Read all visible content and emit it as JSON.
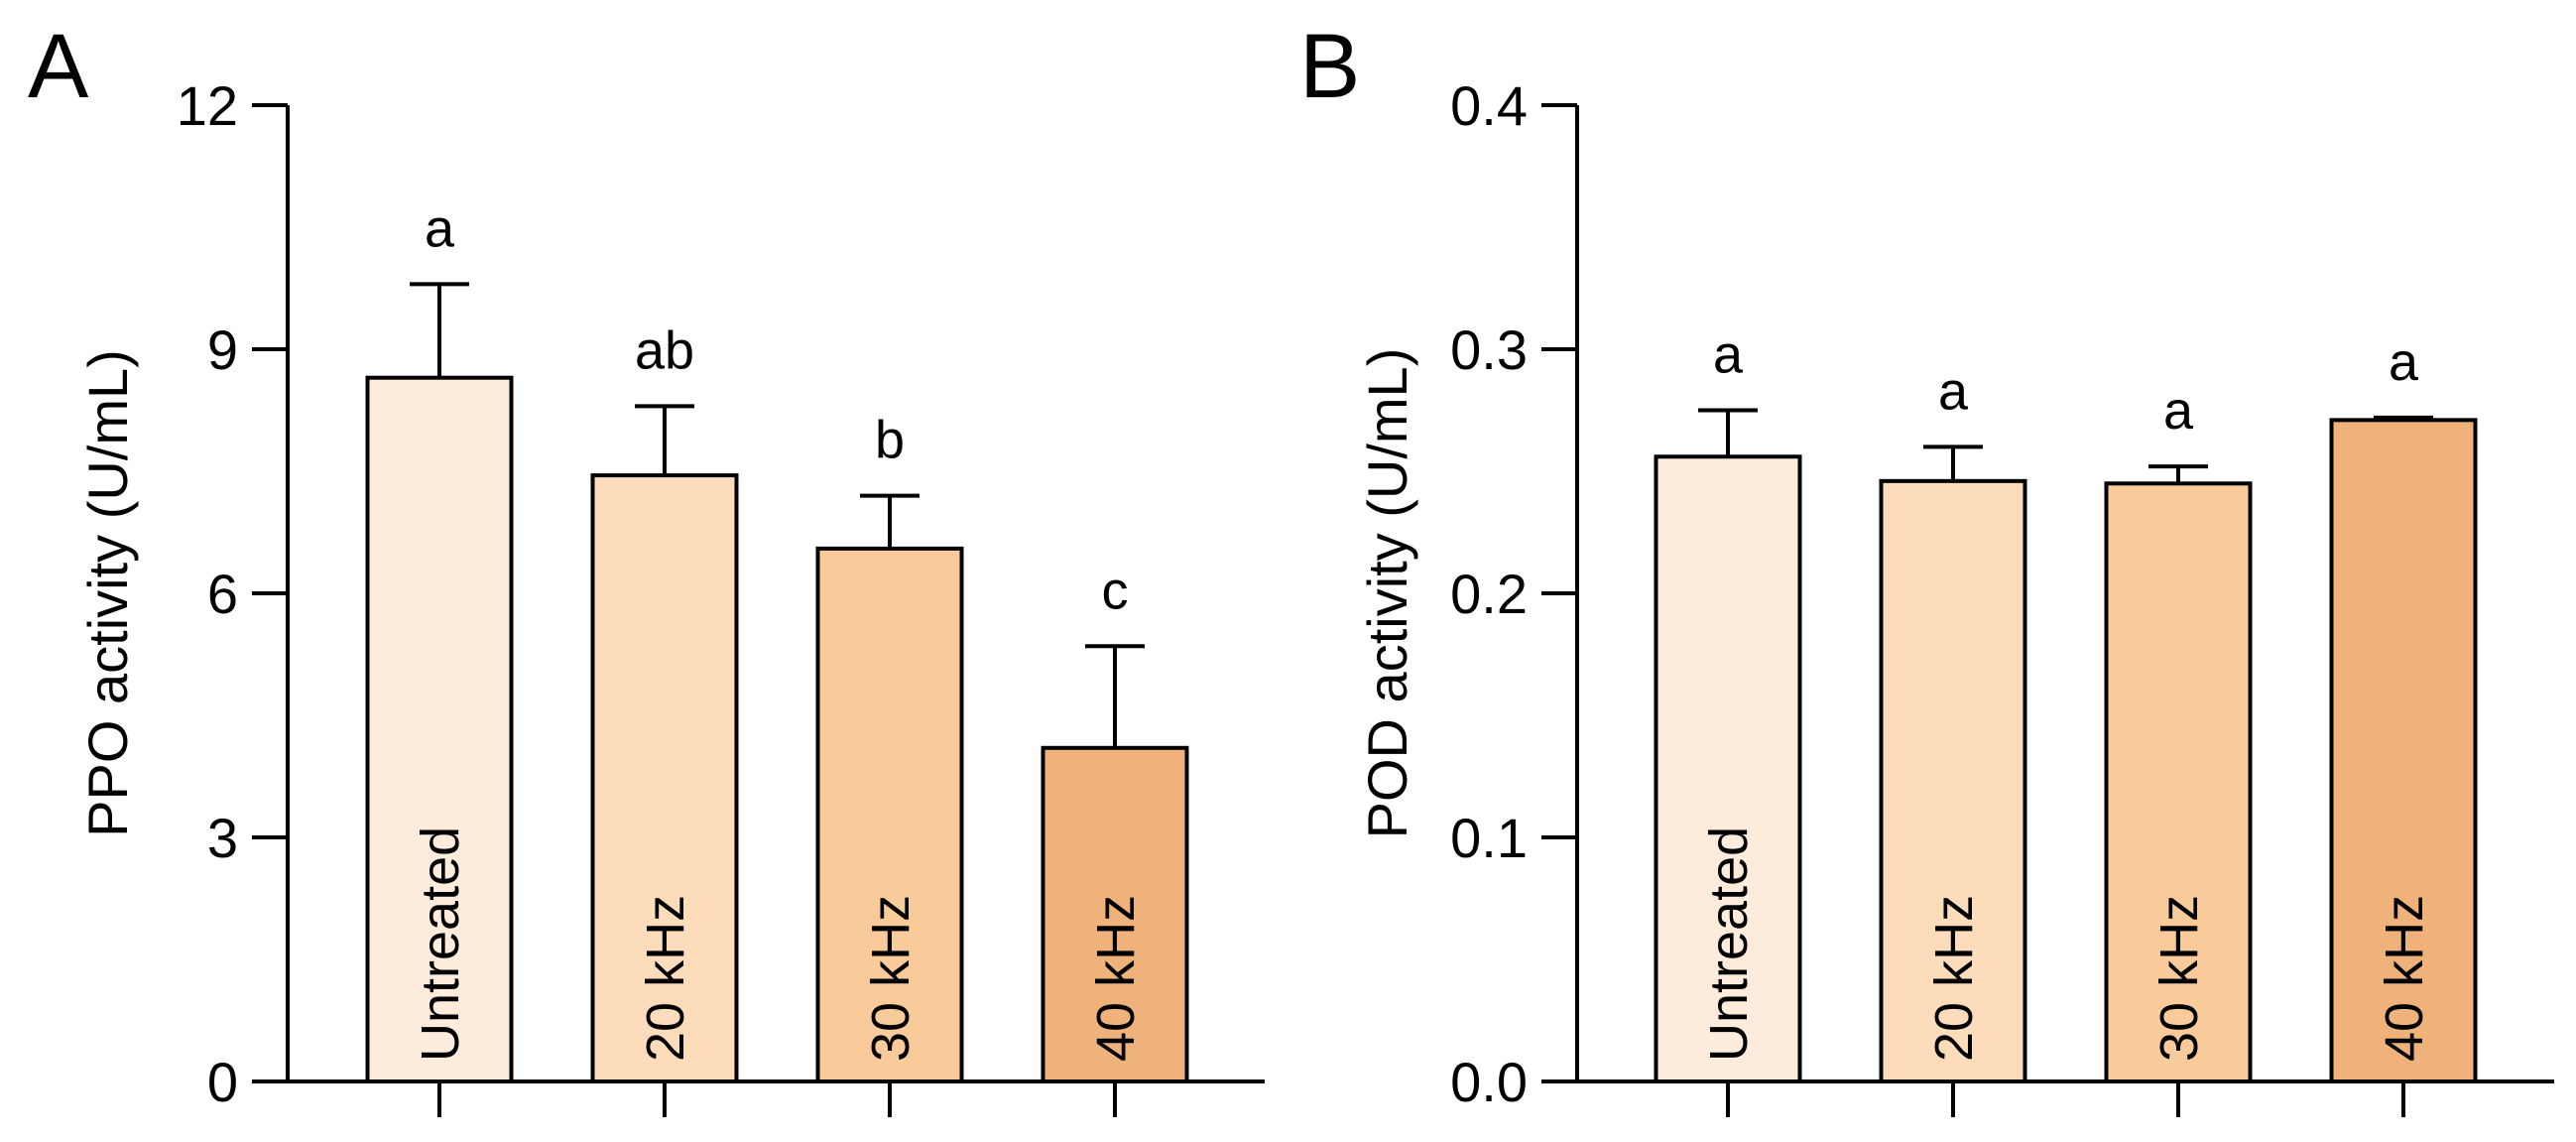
{
  "chart_data": [
    {
      "type": "bar",
      "panel_label": "A",
      "title": "",
      "xlabel": "",
      "ylabel": "PPO activity (U/mL)",
      "ylim": [
        0,
        12
      ],
      "yticks": [
        0,
        3,
        6,
        9,
        12
      ],
      "ytick_labels": [
        "0",
        "3",
        "6",
        "9",
        "12"
      ],
      "categories": [
        "Untreated",
        "20 kHz",
        "30 kHz",
        "40 kHz"
      ],
      "values": [
        8.65,
        7.45,
        6.55,
        4.1
      ],
      "errors": [
        1.15,
        0.85,
        0.65,
        1.25
      ],
      "significance": [
        "a",
        "ab",
        "b",
        "c"
      ],
      "bar_colors": [
        "#fdebdc",
        "#fcdcbb",
        "#f9cb9b",
        "#efb27a"
      ]
    },
    {
      "type": "bar",
      "panel_label": "B",
      "title": "",
      "xlabel": "",
      "ylabel": "POD activity (U/mL)",
      "ylim": [
        0,
        0.4
      ],
      "yticks": [
        0,
        0.1,
        0.2,
        0.3,
        0.4
      ],
      "ytick_labels": [
        "0.0",
        "0.1",
        "0.2",
        "0.3",
        "0.4"
      ],
      "categories": [
        "Untreated",
        "20 kHz",
        "30 kHz",
        "40 kHz"
      ],
      "values": [
        0.256,
        0.246,
        0.245,
        0.271
      ],
      "errors": [
        0.019,
        0.014,
        0.007,
        0.001
      ],
      "significance": [
        "a",
        "a",
        "a",
        "a"
      ],
      "bar_colors": [
        "#fdebdc",
        "#fcdcbb",
        "#f9cb9b",
        "#efb27a"
      ]
    }
  ]
}
